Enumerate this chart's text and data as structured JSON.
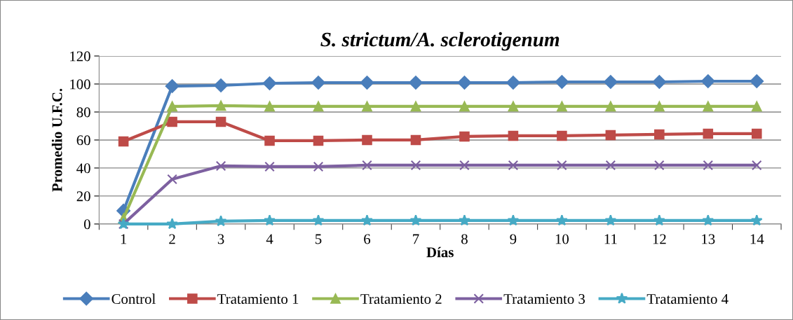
{
  "chart_data": {
    "type": "line",
    "title": "S. strictum/A. sclerotigenum",
    "xlabel": "Días",
    "ylabel": "Promedio U.F.C.",
    "categories": [
      "1",
      "2",
      "3",
      "4",
      "5",
      "6",
      "7",
      "8",
      "9",
      "10",
      "11",
      "12",
      "13",
      "14"
    ],
    "ylim": [
      0,
      120
    ],
    "yticks": [
      0,
      20,
      40,
      60,
      80,
      100,
      120
    ],
    "grid": "y",
    "legend": "bottom",
    "series": [
      {
        "name": "Control",
        "color": "#4a7ebb",
        "marker": "diamond",
        "values": [
          9.5,
          98.5,
          99,
          100.5,
          101,
          101,
          101,
          101,
          101,
          101.5,
          101.5,
          101.5,
          102,
          102
        ]
      },
      {
        "name": "Tratamiento 1",
        "color": "#be4b48",
        "marker": "square",
        "values": [
          59,
          73,
          73,
          59.5,
          59.5,
          60,
          60,
          62.5,
          63,
          63,
          63.5,
          64,
          64.5,
          64.5
        ]
      },
      {
        "name": "Tratamiento 2",
        "color": "#98b954",
        "marker": "triangle",
        "values": [
          4,
          84,
          84.5,
          84,
          84,
          84,
          84,
          84,
          84,
          84,
          84,
          84,
          84,
          84
        ]
      },
      {
        "name": "Tratamiento 3",
        "color": "#7d60a0",
        "marker": "cross",
        "values": [
          0,
          32,
          41.5,
          41,
          41,
          42,
          42,
          42,
          42,
          42,
          42,
          42,
          42,
          42
        ]
      },
      {
        "name": "Tratamiento 4",
        "color": "#46aac5",
        "marker": "star",
        "values": [
          0,
          0,
          2,
          2.5,
          2.5,
          2.5,
          2.5,
          2.5,
          2.5,
          2.5,
          2.5,
          2.5,
          2.5,
          2.5
        ]
      }
    ]
  }
}
